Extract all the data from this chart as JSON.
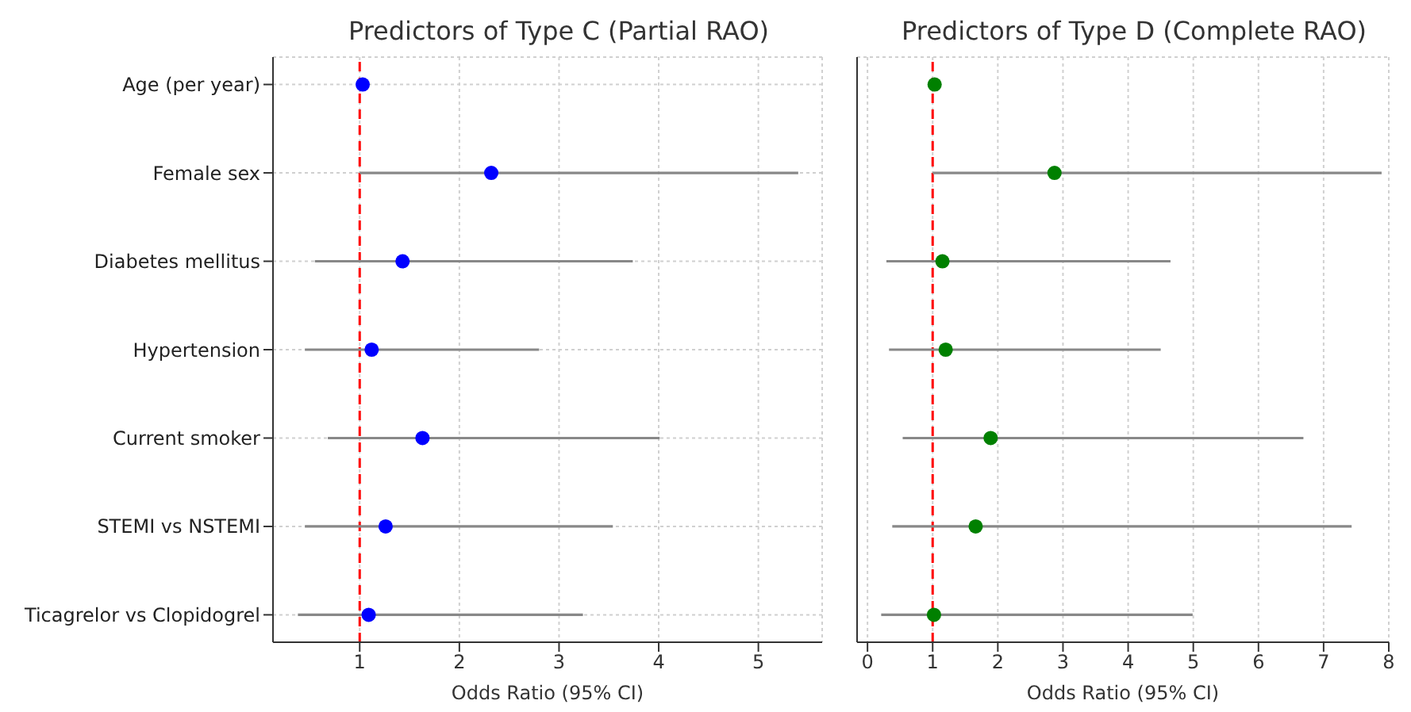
{
  "chart_data": [
    {
      "type": "scatter",
      "title": "Predictors of Type C (Partial RAO)",
      "xlabel": "Odds Ratio (95% CI)",
      "orientation": "horizontal",
      "categories": [
        "Age (per year)",
        "Female sex",
        "Diabetes mellitus",
        "Hypertension",
        "Current smoker",
        "STEMI vs NSTEMI",
        "Ticagrelor vs Clopidogrel"
      ],
      "series": [
        {
          "color": "#0000ff",
          "values": [
            1.03,
            2.32,
            1.43,
            1.12,
            1.63,
            1.26,
            1.09
          ],
          "errors": [
            null,
            [
              1.0,
              5.4
            ],
            [
              0.55,
              3.74
            ],
            [
              0.45,
              2.8
            ],
            [
              0.68,
              4.01
            ],
            [
              0.45,
              3.54
            ],
            [
              0.38,
              3.24
            ]
          ]
        }
      ],
      "xlim": [
        0.13,
        5.64
      ],
      "xticks": [
        1,
        2,
        3,
        4,
        5
      ],
      "grid": true,
      "marker": "circle",
      "ref_lines": [
        {
          "axis": "x",
          "value": 1,
          "color": "#ff0000",
          "line_style": "dashed"
        }
      ]
    },
    {
      "type": "scatter",
      "title": "Predictors of Type D (Complete RAO)",
      "xlabel": "Odds Ratio (95% CI)",
      "orientation": "horizontal",
      "categories": [
        null,
        null,
        null,
        null,
        null,
        null,
        null
      ],
      "series": [
        {
          "color": "#008000",
          "values": [
            1.03,
            2.87,
            1.15,
            1.2,
            1.89,
            1.66,
            1.02
          ],
          "errors": [
            null,
            [
              1.0,
              7.89
            ],
            [
              0.29,
              4.65
            ],
            [
              0.33,
              4.5
            ],
            [
              0.54,
              6.69
            ],
            [
              0.38,
              7.43
            ],
            [
              0.21,
              4.99
            ]
          ]
        }
      ],
      "xlim": [
        -0.16,
        8
      ],
      "xticks": [
        0,
        1,
        2,
        3,
        4,
        5,
        6,
        7,
        8
      ],
      "grid": true,
      "marker": "circle",
      "tick_labels": "x",
      "ref_lines": [
        {
          "axis": "x",
          "value": 1,
          "color": "#ff0000",
          "line_style": "dashed"
        }
      ]
    }
  ]
}
